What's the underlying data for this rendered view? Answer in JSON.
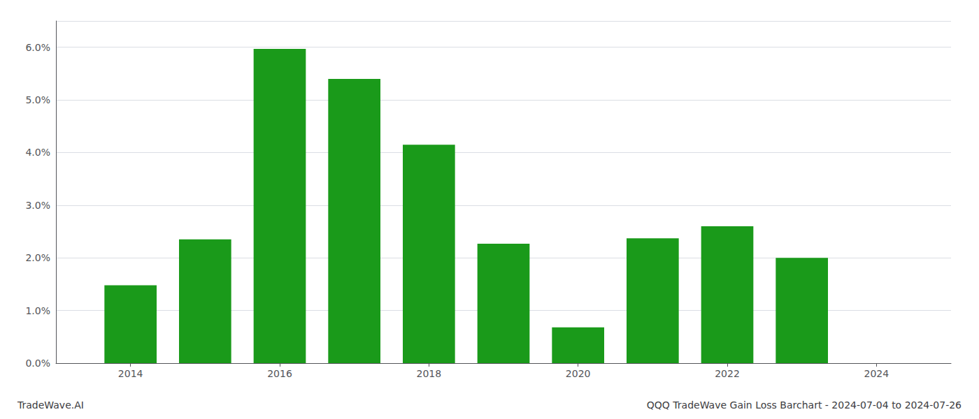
{
  "chart_data": {
    "type": "bar",
    "title": "QQQ TradeWave Gain Loss Barchart - 2024-07-04 to 2024-07-26",
    "annotations": [
      "TradeWave.AI"
    ],
    "x": [
      2014,
      2015,
      2016,
      2017,
      2018,
      2019,
      2020,
      2021,
      2022,
      2023
    ],
    "values": [
      0.0148,
      0.0235,
      0.0597,
      0.054,
      0.0415,
      0.0227,
      0.0068,
      0.0237,
      0.026,
      0.02
    ],
    "color": "#1a9a1a",
    "xlim": [
      2013.0,
      2025.0
    ],
    "xticks": [
      2014,
      2016,
      2018,
      2020,
      2022,
      2024
    ],
    "ylim": [
      0,
      0.065
    ],
    "yticks": [
      {
        "value": 0.0,
        "label": "0.0%"
      },
      {
        "value": 0.01,
        "label": "1.0%"
      },
      {
        "value": 0.02,
        "label": "2.0%"
      },
      {
        "value": 0.03,
        "label": "3.0%"
      },
      {
        "value": 0.04,
        "label": "4.0%"
      },
      {
        "value": 0.05,
        "label": "5.0%"
      },
      {
        "value": 0.06,
        "label": "6.0%"
      }
    ],
    "grid": true
  }
}
